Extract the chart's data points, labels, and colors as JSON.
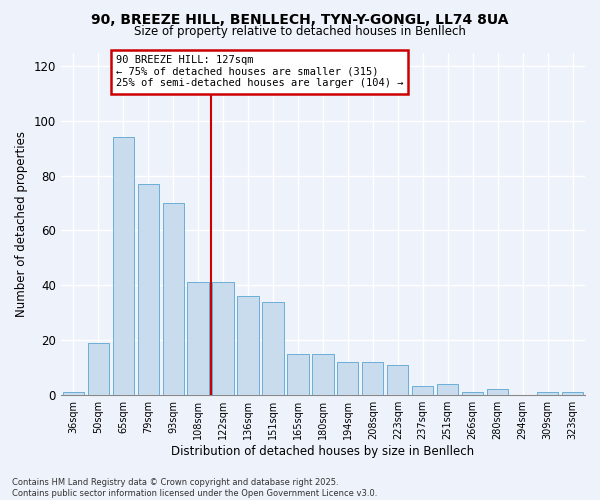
{
  "title_line1": "90, BREEZE HILL, BENLLECH, TYN-Y-GONGL, LL74 8UA",
  "title_line2": "Size of property relative to detached houses in Benllech",
  "xlabel": "Distribution of detached houses by size in Benllech",
  "ylabel": "Number of detached properties",
  "categories": [
    "36sqm",
    "50sqm",
    "65sqm",
    "79sqm",
    "93sqm",
    "108sqm",
    "122sqm",
    "136sqm",
    "151sqm",
    "165sqm",
    "180sqm",
    "194sqm",
    "208sqm",
    "223sqm",
    "237sqm",
    "251sqm",
    "266sqm",
    "280sqm",
    "294sqm",
    "309sqm",
    "323sqm"
  ],
  "values": [
    1,
    19,
    94,
    77,
    70,
    41,
    41,
    36,
    34,
    15,
    15,
    12,
    12,
    11,
    3,
    4,
    1,
    2,
    0,
    1,
    1
  ],
  "bar_color": "#c8dcee",
  "bar_edge_color": "#6aaed6",
  "vline_x": 5.5,
  "annotation_text_line1": "90 BREEZE HILL: 127sqm",
  "annotation_text_line2": "← 75% of detached houses are smaller (315)",
  "annotation_text_line3": "25% of semi-detached houses are larger (104) →",
  "annotation_box_color": "#ffffff",
  "annotation_box_edge_color": "#cc0000",
  "vline_color": "#cc0000",
  "ylim": [
    0,
    125
  ],
  "yticks": [
    0,
    20,
    40,
    60,
    80,
    100,
    120
  ],
  "background_color": "#eef2fa",
  "grid_color": "#ffffff",
  "footnote_line1": "Contains HM Land Registry data © Crown copyright and database right 2025.",
  "footnote_line2": "Contains public sector information licensed under the Open Government Licence v3.0."
}
